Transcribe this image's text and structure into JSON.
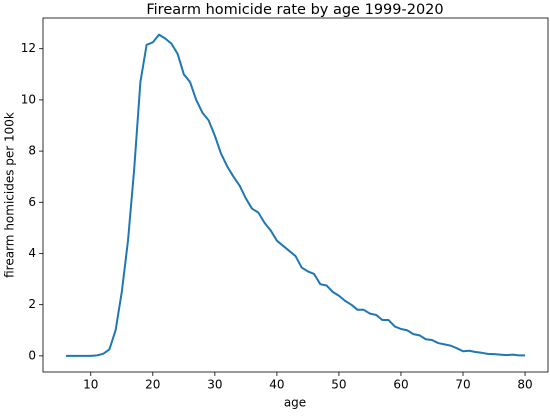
{
  "chart_data": {
    "type": "line",
    "title": "Firearm homicide rate by age 1999-2020",
    "x_label": "age",
    "y_label": "firearm homicides per 100k",
    "x": [
      6,
      7,
      8,
      9,
      10,
      11,
      12,
      13,
      14,
      15,
      16,
      17,
      18,
      19,
      20,
      21,
      22,
      23,
      24,
      25,
      26,
      27,
      28,
      29,
      30,
      31,
      32,
      33,
      34,
      35,
      36,
      37,
      38,
      39,
      40,
      41,
      42,
      43,
      44,
      45,
      46,
      47,
      48,
      49,
      50,
      51,
      52,
      53,
      54,
      55,
      56,
      57,
      58,
      59,
      60,
      61,
      62,
      63,
      64,
      65,
      66,
      67,
      68,
      69,
      70,
      71,
      72,
      73,
      74,
      75,
      76,
      77,
      78,
      79,
      80
    ],
    "series": [
      {
        "name": "firearm homicides per 100k",
        "color": "#1f77b4",
        "values": [
          0,
          0,
          0,
          0,
          0,
          0.02,
          0.08,
          0.25,
          1.0,
          2.5,
          4.5,
          7.3,
          10.7,
          12.15,
          12.25,
          12.55,
          12.4,
          12.2,
          11.8,
          11.0,
          10.7,
          10.0,
          9.5,
          9.2,
          8.6,
          7.9,
          7.4,
          7.0,
          6.65,
          6.15,
          5.75,
          5.6,
          5.2,
          4.9,
          4.5,
          4.3,
          4.1,
          3.9,
          3.45,
          3.3,
          3.2,
          2.8,
          2.75,
          2.5,
          2.35,
          2.15,
          2.0,
          1.8,
          1.8,
          1.65,
          1.6,
          1.4,
          1.4,
          1.15,
          1.05,
          1.0,
          0.85,
          0.8,
          0.65,
          0.62,
          0.5,
          0.45,
          0.4,
          0.3,
          0.18,
          0.2,
          0.15,
          0.12,
          0.08,
          0.07,
          0.05,
          0.03,
          0.05,
          0.02,
          0.02
        ]
      }
    ],
    "xlim": [
      2.3,
      83.7
    ],
    "xticks": [
      10,
      20,
      30,
      40,
      50,
      60,
      70,
      80
    ],
    "ylim": [
      -0.63,
      13.2
    ],
    "yticks": [
      0,
      2,
      4,
      6,
      8,
      10,
      12
    ],
    "grid": false
  }
}
